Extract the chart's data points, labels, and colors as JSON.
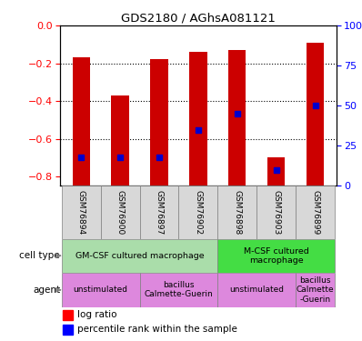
{
  "title": "GDS2180 / AGhsA081121",
  "samples": [
    "GSM76894",
    "GSM76900",
    "GSM76897",
    "GSM76902",
    "GSM76898",
    "GSM76903",
    "GSM76899"
  ],
  "log_ratios": [
    -0.17,
    -0.37,
    -0.18,
    -0.14,
    -0.13,
    -0.7,
    -0.09
  ],
  "percentile_ranks": [
    18,
    18,
    18,
    35,
    45,
    10,
    50
  ],
  "ylim_left": [
    -0.85,
    0.0
  ],
  "ylim_right": [
    0,
    100
  ],
  "yticks_left": [
    -0.8,
    -0.6,
    -0.4,
    -0.2,
    0.0
  ],
  "yticks_right": [
    0,
    25,
    50,
    75,
    100
  ],
  "bar_width": 0.45,
  "bar_color": "#cc0000",
  "percentile_color": "#0000cc",
  "gm_color": "#aaddaa",
  "mcsf_color": "#44dd44",
  "agent_color": "#dd88dd",
  "sample_bg": "#d8d8d8",
  "grid_color": "#000000"
}
